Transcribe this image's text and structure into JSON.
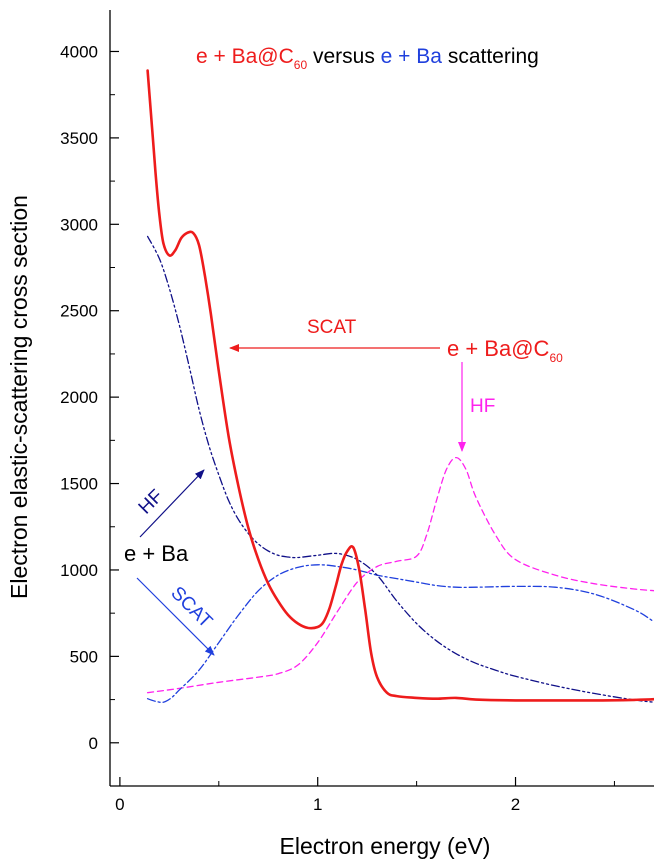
{
  "chart_data": {
    "type": "line",
    "title": {
      "part1": "e + Ba@C",
      "part1_sub": "60",
      "part2": " versus ",
      "part3": "e + Ba",
      "part4": " scattering"
    },
    "xlabel": "Electron energy (eV)",
    "ylabel": "Electron elastic-scattering cross section",
    "xlim": [
      -0.05,
      2.7
    ],
    "ylim": [
      -250,
      4240
    ],
    "xticks": [
      0,
      1,
      2
    ],
    "xtick_labels": [
      "0",
      "1",
      "2"
    ],
    "yticks": [
      0,
      500,
      1000,
      1500,
      2000,
      2500,
      3000,
      3500,
      4000
    ],
    "ytick_labels": [
      "0",
      "500",
      "1000",
      "1500",
      "2000",
      "2500",
      "3000",
      "3500",
      "4000"
    ],
    "grid": false,
    "series": [
      {
        "color": "#ee1c1c",
        "style": "solid",
        "x": [
          0.14,
          0.16,
          0.18,
          0.2,
          0.22,
          0.25,
          0.28,
          0.31,
          0.34,
          0.37,
          0.4,
          0.43,
          0.46,
          0.5,
          0.55,
          0.6,
          0.65,
          0.7,
          0.75,
          0.8,
          0.85,
          0.9,
          0.95,
          1.0,
          1.03,
          1.06,
          1.09,
          1.12,
          1.15,
          1.18,
          1.21,
          1.24,
          1.27,
          1.3,
          1.35,
          1.4,
          1.5,
          1.6,
          1.7,
          1.8,
          2.0,
          2.2,
          2.4,
          2.6,
          2.7
        ],
        "y": [
          3890,
          3600,
          3300,
          3050,
          2890,
          2820,
          2850,
          2920,
          2950,
          2950,
          2880,
          2700,
          2480,
          2150,
          1770,
          1480,
          1240,
          1060,
          920,
          820,
          740,
          690,
          665,
          670,
          700,
          780,
          900,
          1030,
          1110,
          1130,
          1000,
          770,
          520,
          380,
          290,
          270,
          260,
          255,
          260,
          250,
          245,
          245,
          245,
          248,
          252
        ]
      },
      {
        "color": "#ff22ee",
        "style": "dashed",
        "x": [
          0.14,
          0.3,
          0.5,
          0.7,
          0.8,
          0.9,
          1.0,
          1.1,
          1.2,
          1.3,
          1.4,
          1.5,
          1.55,
          1.6,
          1.65,
          1.7,
          1.75,
          1.8,
          1.9,
          2.0,
          2.2,
          2.4,
          2.6,
          2.7
        ],
        "y": [
          290,
          315,
          350,
          380,
          400,
          450,
          580,
          760,
          930,
          1020,
          1050,
          1080,
          1200,
          1400,
          1580,
          1650,
          1580,
          1420,
          1200,
          1060,
          970,
          920,
          890,
          880
        ]
      },
      {
        "color": "#2040dd",
        "style": "dashdot",
        "x": [
          0.14,
          0.18,
          0.22,
          0.26,
          0.3,
          0.4,
          0.5,
          0.6,
          0.7,
          0.8,
          0.9,
          1.0,
          1.1,
          1.2,
          1.3,
          1.4,
          1.5,
          1.6,
          1.7,
          1.8,
          2.0,
          2.2,
          2.4,
          2.6,
          2.7
        ],
        "y": [
          255,
          240,
          235,
          260,
          305,
          420,
          580,
          740,
          880,
          970,
          1015,
          1030,
          1020,
          1000,
          970,
          950,
          930,
          910,
          900,
          900,
          905,
          900,
          860,
          770,
          700
        ]
      },
      {
        "color": "#101088",
        "style": "dashdotdot",
        "x": [
          0.14,
          0.2,
          0.25,
          0.3,
          0.35,
          0.4,
          0.45,
          0.5,
          0.55,
          0.6,
          0.65,
          0.7,
          0.75,
          0.8,
          0.85,
          0.9,
          1.0,
          1.1,
          1.2,
          1.3,
          1.4,
          1.5,
          1.6,
          1.7,
          1.8,
          1.9,
          2.0,
          2.2,
          2.4,
          2.6,
          2.7
        ],
        "y": [
          2930,
          2800,
          2630,
          2420,
          2180,
          1930,
          1720,
          1550,
          1400,
          1290,
          1210,
          1150,
          1110,
          1085,
          1075,
          1072,
          1085,
          1095,
          1060,
          970,
          820,
          690,
          590,
          515,
          460,
          420,
          385,
          330,
          285,
          248,
          235
        ]
      }
    ],
    "annotations": {
      "scat_red": "SCAT",
      "mol_label": "e + Ba@C",
      "mol_sub": "60",
      "hf_magenta": "HF",
      "hf_navy": "HF",
      "eba": "e + Ba",
      "scat_blue": "SCAT"
    },
    "colors": {
      "red": "#ee1c1c",
      "magenta": "#ff22ee",
      "blue": "#2040dd",
      "navy": "#101088",
      "axis": "#000000"
    }
  }
}
